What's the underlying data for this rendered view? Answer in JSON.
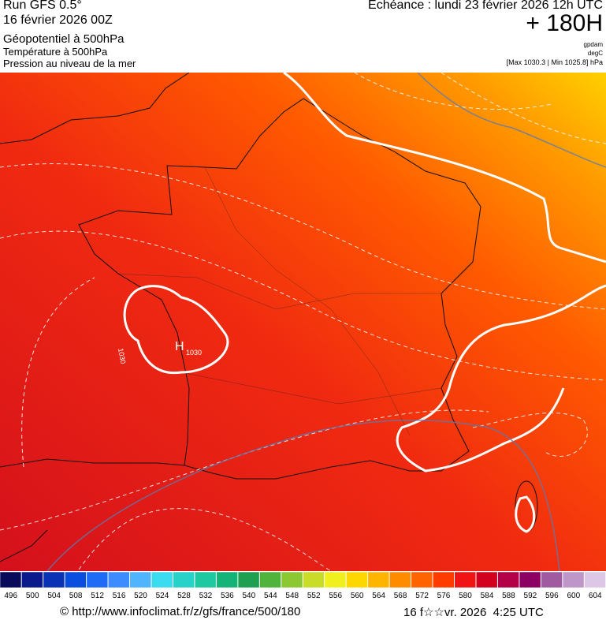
{
  "header": {
    "run": "Run GFS 0.5°",
    "date": "16 février 2026 00Z",
    "field1": "Géopotentiel à 500hPa",
    "field2": "Température à 500hPa",
    "field3": "Pression au niveau de la mer",
    "echeance": "Echéance : lundi 23 février 2026 12h UTC",
    "lead": "+ 180H",
    "unit1": "gpdam",
    "unit2": "degC",
    "pressure_range": "[Max 1030.3 | Min 1025.8] hPa"
  },
  "map": {
    "labels": [
      "H",
      "1030",
      "1030"
    ]
  },
  "scale": {
    "levels": [
      496,
      500,
      504,
      508,
      512,
      516,
      520,
      524,
      528,
      532,
      536,
      540,
      544,
      548,
      552,
      556,
      560,
      564,
      568,
      572,
      576,
      580,
      584,
      588,
      592,
      596,
      600,
      604
    ],
    "colors": [
      "#0a0a5a",
      "#0a1a8c",
      "#0a32b4",
      "#0a4ee0",
      "#1e6cf5",
      "#3c8cff",
      "#50b4ff",
      "#3cdcf0",
      "#28d2c8",
      "#1ec8a0",
      "#14b478",
      "#1ea050",
      "#50b43c",
      "#8cc832",
      "#c8dc28",
      "#f0f01e",
      "#ffd700",
      "#ffb400",
      "#ff8c00",
      "#ff6400",
      "#ff3c00",
      "#f01414",
      "#d2001e",
      "#b40046",
      "#8c0064",
      "#a05aa0",
      "#be96c8",
      "#dcc8e6"
    ]
  },
  "footer": {
    "url": "© http://www.infoclimat.fr/z/gfs/france/500/180",
    "time": "16 f☆☆vr. 2026  4:25 UTC"
  }
}
